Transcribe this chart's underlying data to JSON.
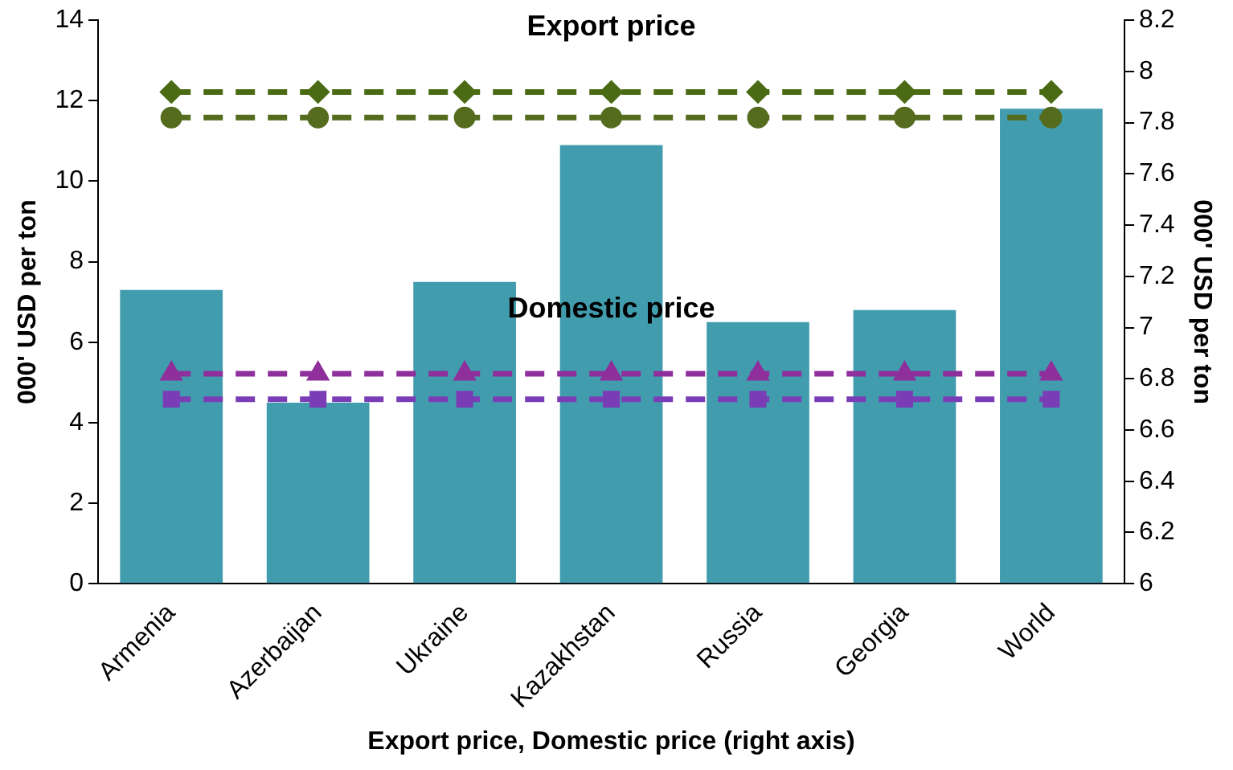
{
  "chart_data": {
    "type": "bar",
    "xlabel": "Export price, Domestic price (right axis)",
    "ylabel": "000' USD per ton",
    "y2label": "000' USD per ton",
    "categories": [
      "Armenia",
      "Azerbaijan",
      "Ukraine",
      "Kazakhstan",
      "Russia",
      "Georgia",
      "World"
    ],
    "series": [
      {
        "color": "#419dae",
        "values": [
          7.3,
          4.5,
          7.5,
          10.9,
          6.5,
          6.8,
          11.8
        ]
      },
      {
        "type": "line",
        "axis": "y2",
        "color": "#4a6b14",
        "marker": "diamond",
        "line_style": "dashed",
        "values": [
          7.92,
          7.92,
          7.92,
          7.92,
          7.92,
          7.92,
          7.92
        ]
      },
      {
        "type": "line",
        "axis": "y2",
        "color": "#556b1e",
        "marker": "circle",
        "line_style": "dashed",
        "values": [
          7.82,
          7.82,
          7.82,
          7.82,
          7.82,
          7.82,
          7.82
        ]
      },
      {
        "type": "line",
        "axis": "y2",
        "color": "#8e2f9c",
        "marker": "triangle",
        "line_style": "dashed",
        "values": [
          6.82,
          6.82,
          6.82,
          6.82,
          6.82,
          6.82,
          6.82
        ]
      },
      {
        "type": "line",
        "axis": "y2",
        "color": "#7a3db5",
        "marker": "square",
        "line_style": "dashed",
        "values": [
          6.72,
          6.72,
          6.72,
          6.72,
          6.72,
          6.72,
          6.72
        ]
      }
    ],
    "ylim": [
      0,
      14
    ],
    "yticks": [
      0,
      2,
      4,
      6,
      8,
      10,
      12,
      14
    ],
    "y2lim": [
      6,
      8.2
    ],
    "y2ticks": [
      6,
      6.2,
      6.4,
      6.6,
      6.8,
      7,
      7.2,
      7.4,
      7.6,
      7.8,
      8,
      8.2
    ],
    "annotations": [
      "Export price",
      "Domestic price"
    ],
    "grid": false,
    "legend": false
  }
}
